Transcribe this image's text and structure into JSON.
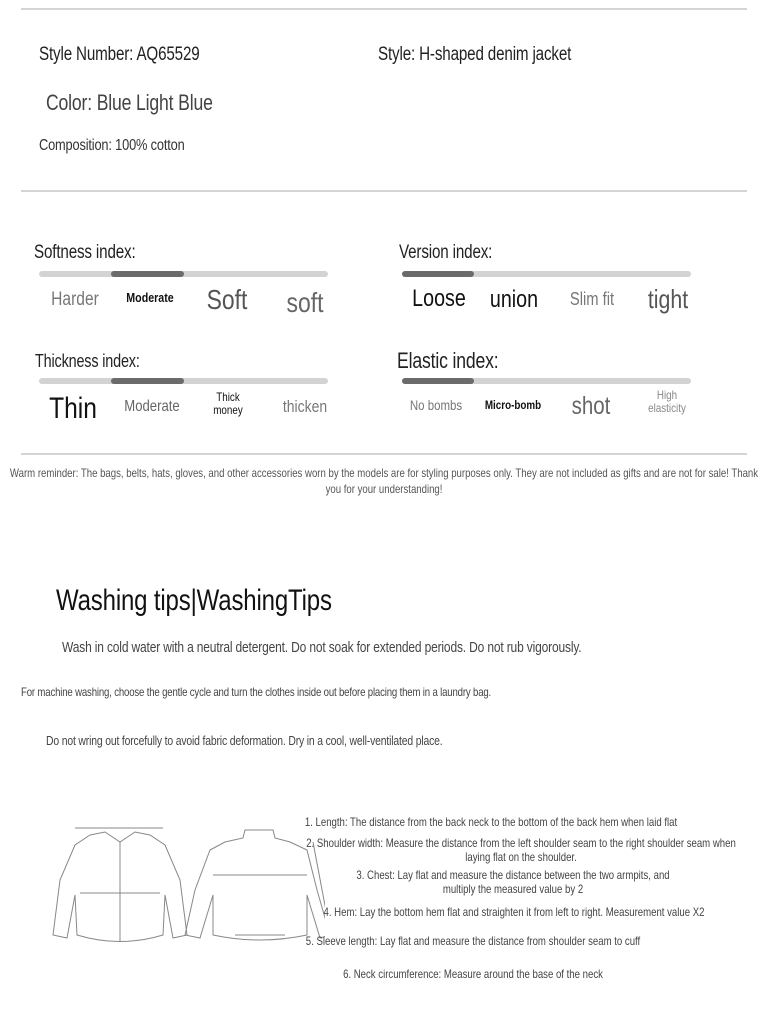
{
  "info": {
    "style_number": "Style Number: AQ65529",
    "style": "Style: H-shaped denim jacket",
    "color": "Color: Blue Light Blue",
    "composition": "Composition: 100% cotton"
  },
  "indices": {
    "softness": {
      "label": "Softness index:",
      "options": [
        "Harder",
        "Moderate",
        "Soft",
        "soft"
      ],
      "level": 2,
      "of": 4
    },
    "version": {
      "label": "Version index:",
      "options": [
        "Loose",
        "union",
        "Slim fit",
        "tight"
      ],
      "level": 1,
      "of": 4
    },
    "thickness": {
      "label": "Thickness index:",
      "options": [
        "Thin",
        "Moderate",
        "Thick money",
        "thicken"
      ],
      "level": 2,
      "of": 4
    },
    "elastic": {
      "label": "Elastic index:",
      "options": [
        "No bombs",
        "Micro-bomb",
        "shot",
        "High elasticity"
      ],
      "level": 1,
      "of": 4
    }
  },
  "reminder": "Warm reminder: The bags, belts, hats, gloves, and other accessories worn by the models are for styling purposes only. They are not included as gifts and are not for sale! Thank you for your understanding!",
  "washing": {
    "title": "Washing tips|WashingTips",
    "tips": [
      "Wash in cold water with a neutral detergent. Do not soak for extended periods. Do not rub vigorously.",
      "For machine washing, choose the gentle cycle and turn the clothes inside out before placing them in a laundry bag.",
      "Do not wring out forcefully to avoid fabric deformation. Dry in a cool, well-ventilated place."
    ]
  },
  "measure": {
    "items": [
      "1. Length: The distance from the back neck to the bottom of the back hem when laid flat",
      "2. Shoulder width: Measure the distance from the left shoulder seam to the right shoulder seam when laying flat on the shoulder.",
      "3. Chest: Lay flat and measure the distance between the two armpits, and multiply the measured value by 2",
      "4. Hem: Lay the bottom hem flat and straighten it from left to right. Measurement value X2",
      "5. Sleeve length: Lay flat and measure the distance from shoulder seam to cuff",
      "6. Neck circumference: Measure around the base of the neck"
    ]
  },
  "colors": {
    "track": "#d3d3d3",
    "fill": "#6b6b6b",
    "divider": "#d4d4d4"
  }
}
